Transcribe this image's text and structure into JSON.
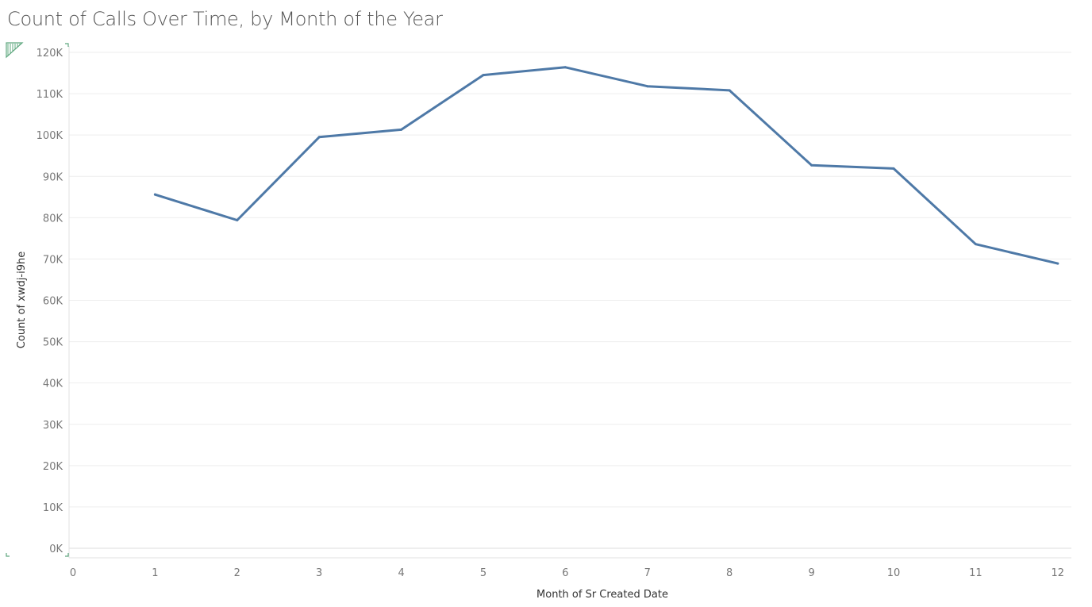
{
  "colors": {
    "series": "#4e79a7",
    "title": "#555555",
    "grid": "#eeeeee",
    "marker": "#5fa87f"
  },
  "marker_icon": "view-marker-icon",
  "chart_data": {
    "type": "line",
    "title": "Count of Calls Over Time, by Month of the Year",
    "xlabel": "Month of Sr Created Date",
    "ylabel": "Count of xwdj-i9he",
    "xlim": [
      0,
      12.3
    ],
    "ylim": [
      0,
      120000
    ],
    "x_ticks": [
      0,
      1,
      2,
      3,
      4,
      5,
      6,
      7,
      8,
      9,
      10,
      11,
      12
    ],
    "x_tick_labels": [
      "0",
      "1",
      "2",
      "3",
      "4",
      "5",
      "6",
      "7",
      "8",
      "9",
      "10",
      "11",
      "12"
    ],
    "y_ticks": [
      0,
      10000,
      20000,
      30000,
      40000,
      50000,
      60000,
      70000,
      80000,
      90000,
      100000,
      110000,
      120000
    ],
    "y_tick_labels": [
      "0K",
      "10K",
      "20K",
      "30K",
      "40K",
      "50K",
      "60K",
      "70K",
      "80K",
      "90K",
      "100K",
      "110K",
      "120K"
    ],
    "grid": true,
    "series": [
      {
        "x": [
          1,
          2,
          3,
          4,
          5,
          6,
          7,
          8,
          9,
          10,
          11,
          12
        ],
        "values": [
          85600,
          79400,
          99500,
          101300,
          114500,
          116400,
          111800,
          110800,
          92700,
          91900,
          73600,
          68900
        ]
      }
    ]
  }
}
